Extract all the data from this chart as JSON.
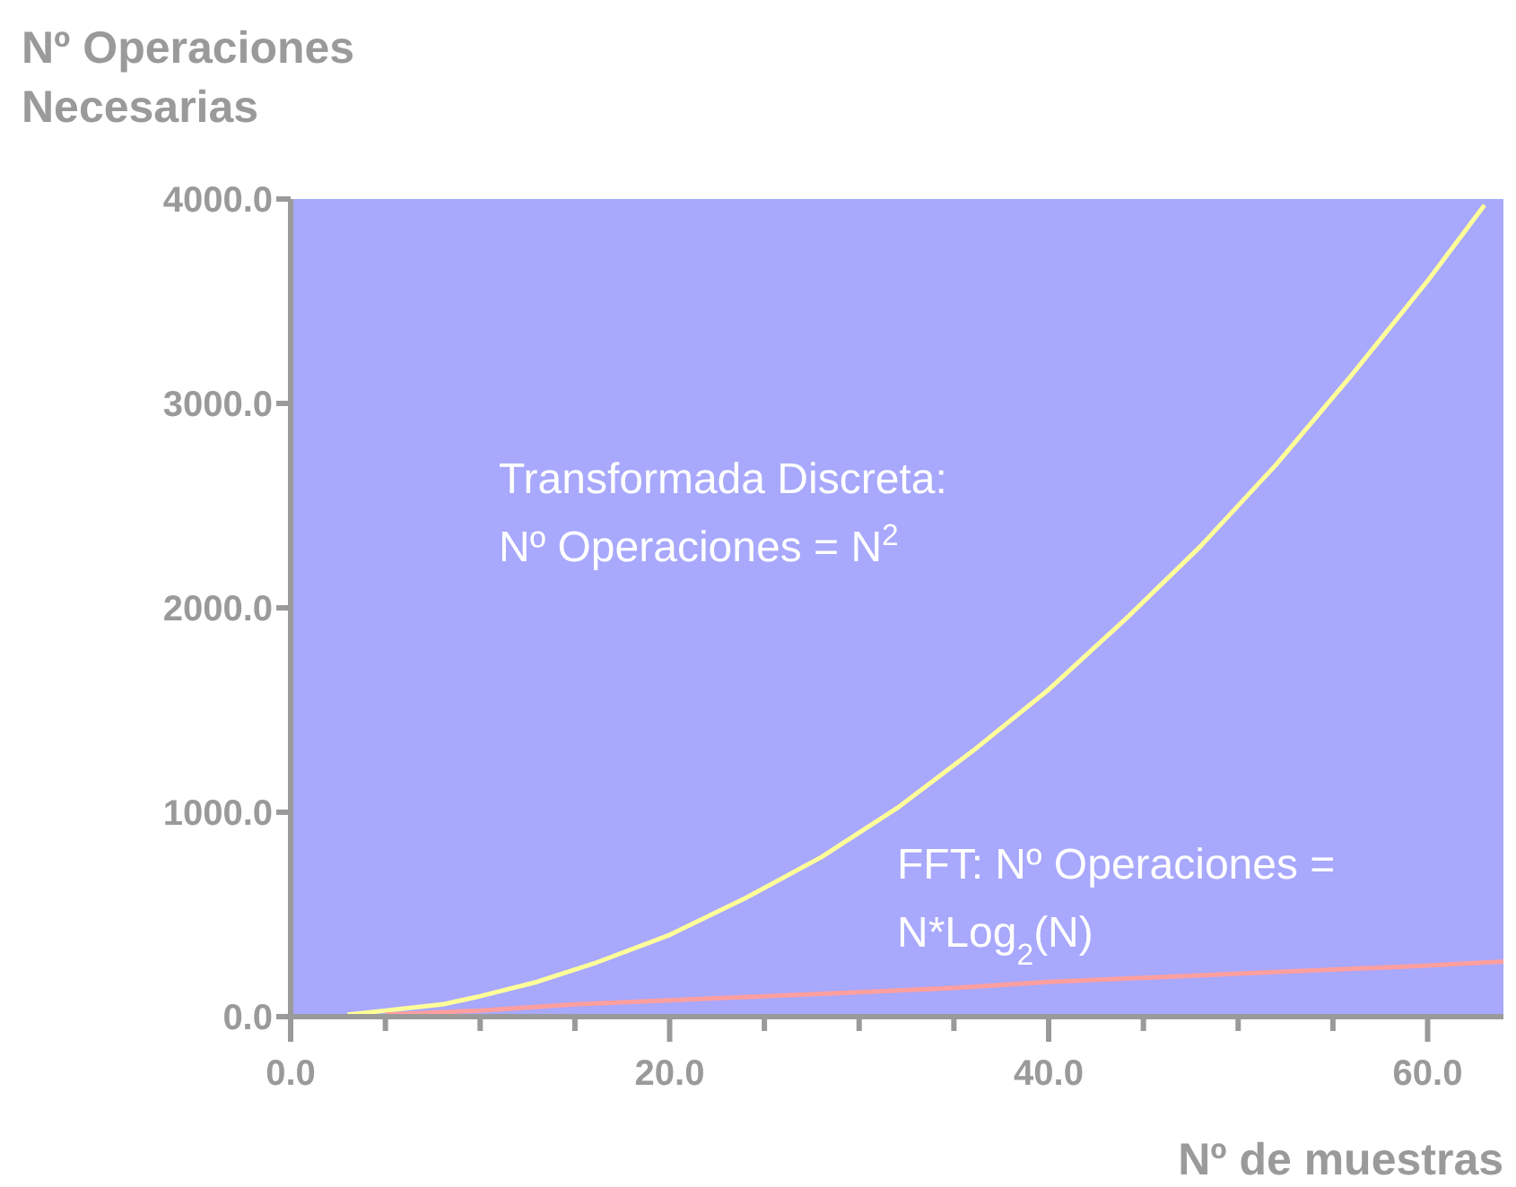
{
  "chart_data": {
    "type": "line",
    "xlabel": "Nº de muestras",
    "ylabel": "Nº Operaciones\nNecesarias",
    "xlim": [
      0,
      64
    ],
    "ylim": [
      0,
      4000
    ],
    "xticks": [
      {
        "value": 0,
        "label": "0.0"
      },
      {
        "value": 5,
        "label": null
      },
      {
        "value": 10,
        "label": null
      },
      {
        "value": 15,
        "label": null
      },
      {
        "value": 20,
        "label": "20.0"
      },
      {
        "value": 25,
        "label": null
      },
      {
        "value": 30,
        "label": null
      },
      {
        "value": 35,
        "label": null
      },
      {
        "value": 40,
        "label": "40.0"
      },
      {
        "value": 45,
        "label": null
      },
      {
        "value": 50,
        "label": null
      },
      {
        "value": 55,
        "label": null
      },
      {
        "value": 60,
        "label": "60.0"
      }
    ],
    "yticks": [
      {
        "value": 0,
        "label": "0.0"
      },
      {
        "value": 1000,
        "label": "1000.0"
      },
      {
        "value": 2000,
        "label": "2000.0"
      },
      {
        "value": 3000,
        "label": "3000.0"
      },
      {
        "value": 4000,
        "label": "4000.0"
      }
    ],
    "grid": false,
    "series": [
      {
        "color": "#ffff99",
        "x": [
          3,
          5,
          8,
          10,
          13,
          16,
          20,
          24,
          28,
          32,
          36,
          40,
          44,
          48,
          52,
          56,
          60,
          63
        ],
        "values": [
          10,
          30,
          60,
          100,
          170,
          260,
          400,
          580,
          780,
          1020,
          1300,
          1600,
          1940,
          2300,
          2700,
          3140,
          3600,
          3970
        ]
      },
      {
        "color": "#ff9f9f",
        "x": [
          5,
          10,
          15,
          20,
          25,
          30,
          35,
          40,
          45,
          50,
          55,
          60,
          64
        ],
        "values": [
          10,
          30,
          60,
          80,
          100,
          120,
          140,
          170,
          190,
          210,
          230,
          250,
          270
        ]
      }
    ],
    "annotations": [
      "Transformada Discreta:\nNº Operaciones = N$^{2}$",
      "FFT: Nº Operaciones =\nN*Log$_{2}$(N)"
    ]
  }
}
